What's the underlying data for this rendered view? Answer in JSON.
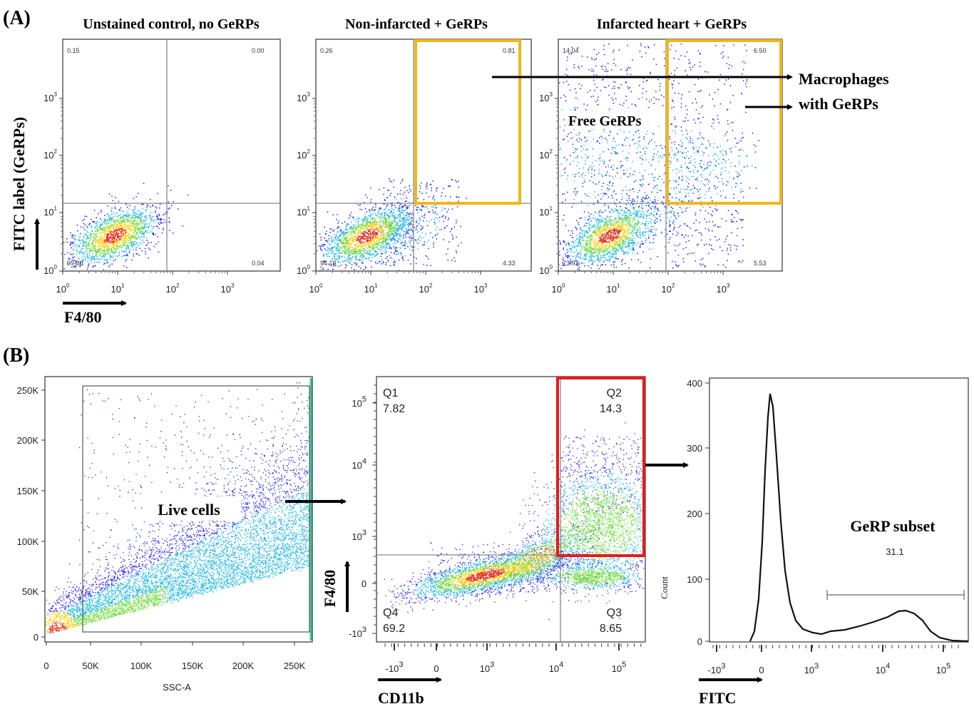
{
  "panel_a": {
    "label": "(A)",
    "plots": [
      {
        "title": "Unstained control, no GeRPs",
        "quadrant_values": [
          "0.15",
          "0.00",
          "99.80",
          "0.04"
        ]
      },
      {
        "title": "Non-infarcted + GeRPs",
        "quadrant_values": [
          "0.26",
          "0.81",
          "94.10",
          "4.33"
        ]
      },
      {
        "title": "Infarcted heart + GeRPs",
        "quadrant_values": [
          "14.04",
          "6.50",
          "73.93",
          "5.53"
        ]
      }
    ],
    "ticks": [
      {
        "base": "10",
        "exp": "0"
      },
      {
        "base": "10",
        "exp": "1"
      },
      {
        "base": "10",
        "exp": "2"
      },
      {
        "base": "10",
        "exp": "3"
      }
    ],
    "y_axis_label": "FITC label (GeRPs)",
    "x_axis_label": "F4/80",
    "annotation_macrophages": "Macrophages",
    "annotation_with_gerps": "with GeRPs",
    "annotation_free_gerps": "Free GeRPs"
  },
  "panel_b": {
    "label": "(B)",
    "live_gate": {
      "yticks": [
        "0",
        "50K",
        "100K",
        "150K",
        "200K",
        "250K"
      ],
      "xticks": [
        "0",
        "50K",
        "100K",
        "150K",
        "200K",
        "250K"
      ],
      "x_axis_label": "SSC-A",
      "gate_label": "Live cells"
    },
    "quadrant_plot": {
      "yticks": [
        {
          "base": "10",
          "exp": "5"
        },
        {
          "base": "10",
          "exp": "4"
        },
        {
          "base": "10",
          "exp": "3"
        },
        "0",
        {
          "base": "-10",
          "exp": "3"
        }
      ],
      "xticks": [
        {
          "base": "-10",
          "exp": "3"
        },
        "0",
        {
          "base": "10",
          "exp": "3"
        },
        {
          "base": "10",
          "exp": "4"
        },
        {
          "base": "10",
          "exp": "5"
        }
      ],
      "quadrants": [
        {
          "name": "Q1",
          "value": "7.82"
        },
        {
          "name": "Q2",
          "value": "14.3"
        },
        {
          "name": "Q4",
          "value": "69.2"
        },
        {
          "name": "Q3",
          "value": "8.65"
        }
      ],
      "y_axis_label": "F4/80",
      "x_axis_label": "CD11b"
    },
    "histogram": {
      "yticks": [
        "0",
        "100",
        "200",
        "300",
        "400"
      ],
      "xticks": [
        {
          "base": "-10",
          "exp": "3"
        },
        "0",
        {
          "base": "10",
          "exp": "3"
        },
        {
          "base": "10",
          "exp": "4"
        },
        {
          "base": "10",
          "exp": "5"
        }
      ],
      "y_axis_label": "Count",
      "x_axis_label": "FITC",
      "gate_label": "GeRP subset",
      "gate_value": "31.1"
    }
  }
}
